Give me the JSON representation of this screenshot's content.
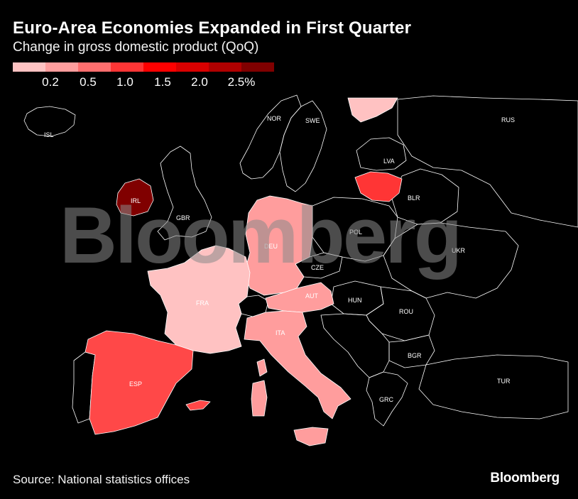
{
  "title": "Euro-Area Economies Expanded in First Quarter",
  "subtitle": "Change in gross domestic product (QoQ)",
  "legend": {
    "colors": [
      "#ffc2c2",
      "#ff9d9d",
      "#ff6e6e",
      "#ff3535",
      "#ff0000",
      "#d90000",
      "#b00000",
      "#800000"
    ],
    "ticks": [
      "0.2",
      "0.5",
      "1.0",
      "1.5",
      "2.0",
      "2.5%"
    ]
  },
  "colors": {
    "background": "#000000",
    "border": "#ffffff",
    "no_data": "#000000"
  },
  "countries": [
    {
      "code": "ISL",
      "label": "ISL"
    },
    {
      "code": "NOR",
      "label": "NOR"
    },
    {
      "code": "SWE",
      "label": "SWE"
    },
    {
      "code": "FIN",
      "label": "",
      "color": "#ffc2c2"
    },
    {
      "code": "RUS",
      "label": "RUS"
    },
    {
      "code": "LVA",
      "label": "LVA"
    },
    {
      "code": "LTU",
      "label": "",
      "color": "#ff3535"
    },
    {
      "code": "BLR",
      "label": "BLR"
    },
    {
      "code": "IRL",
      "label": "IRL",
      "color": "#800000"
    },
    {
      "code": "GBR",
      "label": "GBR"
    },
    {
      "code": "DEU",
      "label": "DEU",
      "color": "#ff9d9d"
    },
    {
      "code": "POL",
      "label": "POL"
    },
    {
      "code": "UKR",
      "label": "UKR"
    },
    {
      "code": "CZE",
      "label": "CZE"
    },
    {
      "code": "FRA",
      "label": "FRA",
      "color": "#ffc2c2"
    },
    {
      "code": "AUT",
      "label": "AUT",
      "color": "#ff9d9d"
    },
    {
      "code": "HUN",
      "label": "HUN"
    },
    {
      "code": "ROU",
      "label": "ROU"
    },
    {
      "code": "ITA",
      "label": "ITA",
      "color": "#ff9d9d"
    },
    {
      "code": "BGR",
      "label": "BGR"
    },
    {
      "code": "ESP",
      "label": "ESP",
      "color": "#ff4848"
    },
    {
      "code": "TUR",
      "label": "TUR"
    },
    {
      "code": "GRC",
      "label": "GRC"
    }
  ],
  "watermark": "Bloomberg",
  "source": "Source: National statistics offices",
  "brand": "Bloomberg"
}
